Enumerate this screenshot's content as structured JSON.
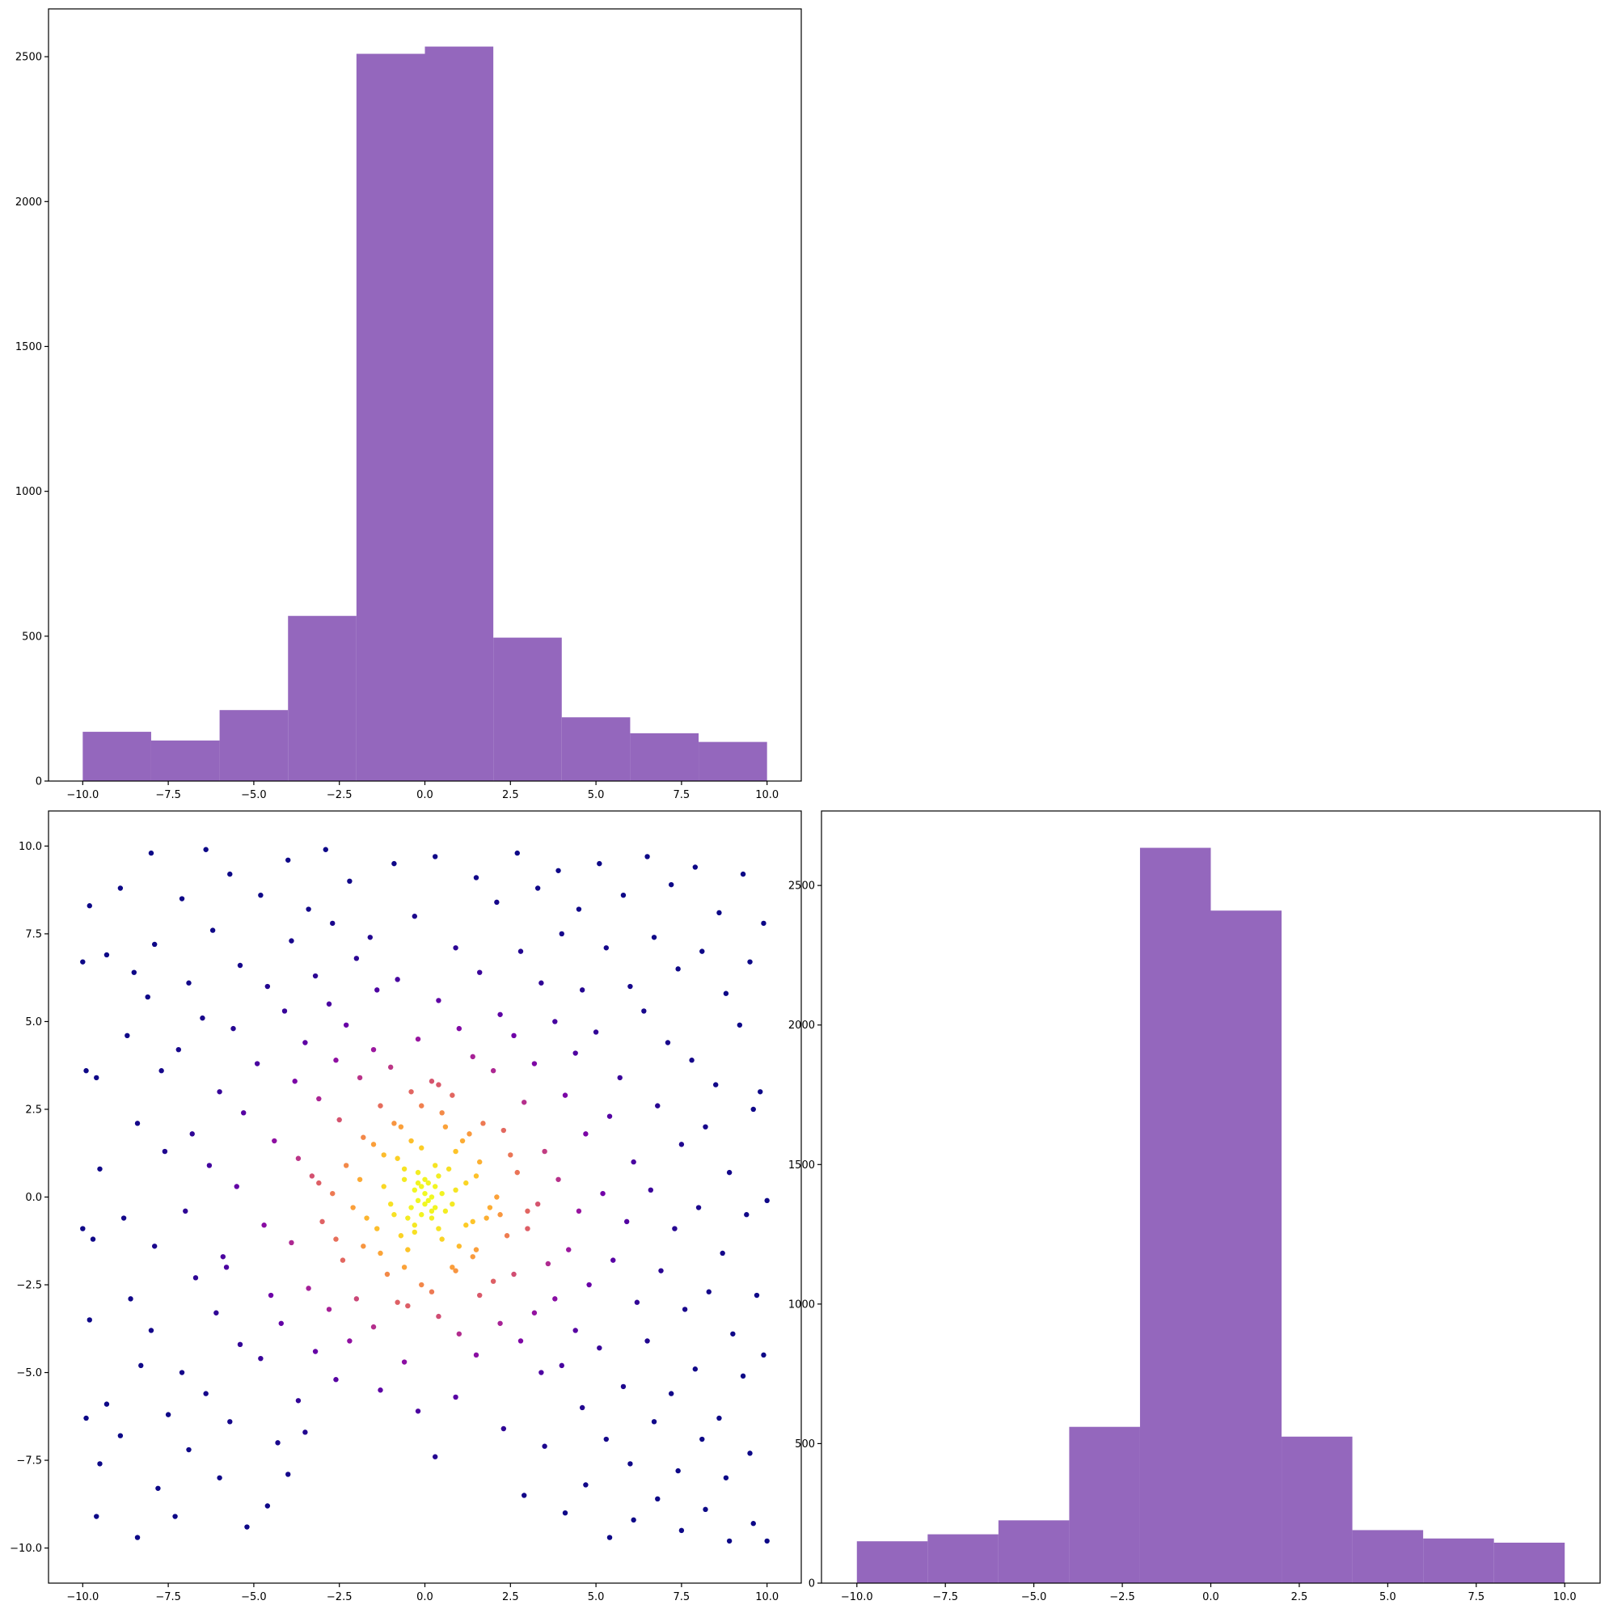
{
  "chart_data": [
    {
      "type": "bar",
      "panel": "top-left",
      "title": "",
      "xlabel": "",
      "ylabel": "",
      "bin_edges": [
        -10,
        -8,
        -6,
        -4,
        -2,
        0,
        2,
        4,
        6,
        8,
        10
      ],
      "values": [
        170,
        140,
        245,
        570,
        2510,
        2535,
        495,
        220,
        165,
        135
      ],
      "xlim": [
        -11,
        11
      ],
      "ylim": [
        0,
        2665
      ],
      "xticks": [
        -10,
        -7.5,
        -5,
        -2.5,
        0,
        2.5,
        5,
        7.5,
        10
      ],
      "xtick_labels": [
        "−10.0",
        "−7.5",
        "−5.0",
        "−2.5",
        "0.0",
        "2.5",
        "5.0",
        "7.5",
        "10.0"
      ],
      "yticks": [
        0,
        500,
        1000,
        1500,
        2000,
        2500
      ],
      "ytick_labels": [
        "0",
        "500",
        "1000",
        "1500",
        "2000",
        "2500"
      ],
      "color": "#9467bd",
      "grid": false
    },
    {
      "type": "scatter",
      "panel": "bottom-left",
      "title": "",
      "xlabel": "",
      "ylabel": "",
      "xlim": [
        -11,
        11
      ],
      "ylim": [
        -11,
        11
      ],
      "xticks": [
        -10,
        -7.5,
        -5,
        -2.5,
        0,
        2.5,
        5,
        7.5,
        10
      ],
      "xtick_labels": [
        "−10.0",
        "−7.5",
        "−5.0",
        "−2.5",
        "0.0",
        "2.5",
        "5.0",
        "7.5",
        "10.0"
      ],
      "yticks": [
        -10,
        -7.5,
        -5,
        -2.5,
        0,
        2.5,
        5,
        7.5,
        10
      ],
      "ytick_labels": [
        "−10.0",
        "−7.5",
        "−5.0",
        "−2.5",
        "0.0",
        "2.5",
        "5.0",
        "7.5",
        "10.0"
      ],
      "colormap": "plasma",
      "color_encoding": "point density",
      "grid": false,
      "points": [
        [
          -9.8,
          8.3
        ],
        [
          -9.3,
          6.9
        ],
        [
          -9.6,
          3.4
        ],
        [
          -9.5,
          0.8
        ],
        [
          -9.7,
          -1.2
        ],
        [
          -9.8,
          -3.5
        ],
        [
          -9.3,
          -5.9
        ],
        [
          -9.5,
          -7.6
        ],
        [
          -9.6,
          -9.1
        ],
        [
          -8.9,
          8.8
        ],
        [
          -8.5,
          6.4
        ],
        [
          -8.7,
          4.6
        ],
        [
          -8.4,
          2.1
        ],
        [
          -8.8,
          -0.6
        ],
        [
          -8.6,
          -2.9
        ],
        [
          -8.3,
          -4.8
        ],
        [
          -8.9,
          -6.8
        ],
        [
          -8.4,
          -9.7
        ],
        [
          -8.0,
          9.8
        ],
        [
          -7.9,
          7.2
        ],
        [
          -8.1,
          5.7
        ],
        [
          -7.7,
          3.6
        ],
        [
          -7.6,
          1.3
        ],
        [
          -7.9,
          -1.4
        ],
        [
          -8.0,
          -3.8
        ],
        [
          -7.5,
          -6.2
        ],
        [
          -7.8,
          -8.3
        ],
        [
          -7.1,
          8.5
        ],
        [
          -6.9,
          6.1
        ],
        [
          -7.2,
          4.2
        ],
        [
          -6.8,
          1.8
        ],
        [
          -7.0,
          -0.4
        ],
        [
          -6.7,
          -2.3
        ],
        [
          -7.1,
          -5.0
        ],
        [
          -6.9,
          -7.2
        ],
        [
          -7.3,
          -9.1
        ],
        [
          -6.4,
          9.9
        ],
        [
          -6.2,
          7.6
        ],
        [
          -6.5,
          5.1
        ],
        [
          -6.0,
          3.0
        ],
        [
          -6.3,
          0.9
        ],
        [
          -5.9,
          -1.7
        ],
        [
          -6.1,
          -3.3
        ],
        [
          -6.4,
          -5.6
        ],
        [
          -6.0,
          -8.0
        ],
        [
          -5.7,
          9.2
        ],
        [
          -5.4,
          6.6
        ],
        [
          -5.6,
          4.8
        ],
        [
          -5.3,
          2.4
        ],
        [
          -5.5,
          0.3
        ],
        [
          -5.8,
          -2.0
        ],
        [
          -5.4,
          -4.2
        ],
        [
          -5.7,
          -6.4
        ],
        [
          -5.2,
          -9.4
        ],
        [
          -4.8,
          8.6
        ],
        [
          -4.6,
          6.0
        ],
        [
          -4.9,
          3.8
        ],
        [
          -4.4,
          1.6
        ],
        [
          -4.7,
          -0.8
        ],
        [
          -4.5,
          -2.8
        ],
        [
          -4.8,
          -4.6
        ],
        [
          -4.3,
          -7.0
        ],
        [
          -4.6,
          -8.8
        ],
        [
          -4.0,
          9.6
        ],
        [
          -3.9,
          7.3
        ],
        [
          -4.1,
          5.3
        ],
        [
          -3.8,
          3.3
        ],
        [
          -3.7,
          1.1
        ],
        [
          -3.9,
          -1.3
        ],
        [
          -4.2,
          -3.6
        ],
        [
          -3.7,
          -5.8
        ],
        [
          -4.0,
          -7.9
        ],
        [
          -3.4,
          8.2
        ],
        [
          -3.2,
          6.3
        ],
        [
          -3.5,
          4.4
        ],
        [
          -3.1,
          2.8
        ],
        [
          -3.3,
          0.6
        ],
        [
          -3.0,
          -0.7
        ],
        [
          -3.4,
          -2.6
        ],
        [
          -3.2,
          -4.4
        ],
        [
          -3.5,
          -6.7
        ],
        [
          -2.9,
          9.9
        ],
        [
          -2.7,
          7.8
        ],
        [
          -2.8,
          5.5
        ],
        [
          -2.6,
          3.9
        ],
        [
          -2.5,
          2.2
        ],
        [
          -2.7,
          0.1
        ],
        [
          -2.4,
          -1.8
        ],
        [
          -2.8,
          -3.2
        ],
        [
          -2.6,
          -5.2
        ],
        [
          -2.2,
          9.0
        ],
        [
          -2.0,
          6.8
        ],
        [
          -2.3,
          4.9
        ],
        [
          -1.9,
          3.4
        ],
        [
          -1.8,
          1.7
        ],
        [
          -2.1,
          -0.3
        ],
        [
          -1.8,
          -1.4
        ],
        [
          -2.0,
          -2.9
        ],
        [
          -2.2,
          -4.1
        ],
        [
          -1.6,
          7.4
        ],
        [
          -1.4,
          5.9
        ],
        [
          -1.5,
          4.2
        ],
        [
          -1.3,
          2.6
        ],
        [
          -1.2,
          1.2
        ],
        [
          -1.4,
          -0.9
        ],
        [
          -1.1,
          -2.2
        ],
        [
          -1.5,
          -3.7
        ],
        [
          -1.3,
          -5.5
        ],
        [
          -0.9,
          9.5
        ],
        [
          -0.8,
          6.2
        ],
        [
          -1.0,
          3.7
        ],
        [
          -0.7,
          2.0
        ],
        [
          -0.6,
          0.8
        ],
        [
          -0.9,
          -0.5
        ],
        [
          -0.5,
          -1.5
        ],
        [
          -0.8,
          -3.0
        ],
        [
          -0.6,
          -4.7
        ],
        [
          -0.3,
          8.0
        ],
        [
          -0.2,
          4.5
        ],
        [
          -0.4,
          3.0
        ],
        [
          -0.1,
          1.4
        ],
        [
          -0.2,
          0.4
        ],
        [
          0.0,
          -0.2
        ],
        [
          -0.3,
          -1.0
        ],
        [
          -0.1,
          -2.5
        ],
        [
          -0.2,
          -6.1
        ],
        [
          0.3,
          9.7
        ],
        [
          0.4,
          5.6
        ],
        [
          0.2,
          3.3
        ],
        [
          0.5,
          2.4
        ],
        [
          0.3,
          0.9
        ],
        [
          0.2,
          -0.4
        ],
        [
          0.5,
          -1.2
        ],
        [
          0.4,
          -3.4
        ],
        [
          0.3,
          -7.4
        ],
        [
          0.9,
          7.1
        ],
        [
          1.0,
          4.8
        ],
        [
          0.8,
          2.9
        ],
        [
          1.1,
          1.6
        ],
        [
          0.9,
          0.2
        ],
        [
          1.2,
          -0.8
        ],
        [
          0.8,
          -2.0
        ],
        [
          1.0,
          -3.9
        ],
        [
          0.9,
          -5.7
        ],
        [
          1.5,
          9.1
        ],
        [
          1.6,
          6.4
        ],
        [
          1.4,
          4.0
        ],
        [
          1.7,
          2.1
        ],
        [
          1.5,
          0.6
        ],
        [
          1.8,
          -0.6
        ],
        [
          1.4,
          -1.7
        ],
        [
          1.6,
          -2.8
        ],
        [
          1.5,
          -4.5
        ],
        [
          2.1,
          8.4
        ],
        [
          2.2,
          5.2
        ],
        [
          2.0,
          3.6
        ],
        [
          2.3,
          1.9
        ],
        [
          2.1,
          0.0
        ],
        [
          2.4,
          -1.1
        ],
        [
          2.0,
          -2.4
        ],
        [
          2.2,
          -3.6
        ],
        [
          2.3,
          -6.6
        ],
        [
          2.7,
          9.8
        ],
        [
          2.8,
          7.0
        ],
        [
          2.6,
          4.6
        ],
        [
          2.9,
          2.7
        ],
        [
          2.7,
          0.7
        ],
        [
          3.0,
          -0.9
        ],
        [
          2.6,
          -2.2
        ],
        [
          2.8,
          -4.1
        ],
        [
          2.9,
          -8.5
        ],
        [
          3.3,
          8.8
        ],
        [
          3.4,
          6.1
        ],
        [
          3.2,
          3.8
        ],
        [
          3.5,
          1.3
        ],
        [
          3.3,
          -0.2
        ],
        [
          3.6,
          -1.9
        ],
        [
          3.2,
          -3.3
        ],
        [
          3.4,
          -5.0
        ],
        [
          3.5,
          -7.1
        ],
        [
          3.9,
          9.3
        ],
        [
          4.0,
          7.5
        ],
        [
          3.8,
          5.0
        ],
        [
          4.1,
          2.9
        ],
        [
          3.9,
          0.5
        ],
        [
          4.2,
          -1.5
        ],
        [
          3.8,
          -2.9
        ],
        [
          4.0,
          -4.8
        ],
        [
          4.1,
          -9.0
        ],
        [
          4.5,
          8.2
        ],
        [
          4.6,
          5.9
        ],
        [
          4.4,
          4.1
        ],
        [
          4.7,
          1.8
        ],
        [
          4.5,
          -0.4
        ],
        [
          4.8,
          -2.5
        ],
        [
          4.4,
          -3.8
        ],
        [
          4.6,
          -6.0
        ],
        [
          4.7,
          -8.2
        ],
        [
          5.1,
          9.5
        ],
        [
          5.3,
          7.1
        ],
        [
          5.0,
          4.7
        ],
        [
          5.4,
          2.3
        ],
        [
          5.2,
          0.1
        ],
        [
          5.5,
          -1.8
        ],
        [
          5.1,
          -4.3
        ],
        [
          5.3,
          -6.9
        ],
        [
          5.4,
          -9.7
        ],
        [
          5.8,
          8.6
        ],
        [
          6.0,
          6.0
        ],
        [
          5.7,
          3.4
        ],
        [
          6.1,
          1.0
        ],
        [
          5.9,
          -0.7
        ],
        [
          6.2,
          -3.0
        ],
        [
          5.8,
          -5.4
        ],
        [
          6.0,
          -7.6
        ],
        [
          6.1,
          -9.2
        ],
        [
          6.5,
          9.7
        ],
        [
          6.7,
          7.4
        ],
        [
          6.4,
          5.3
        ],
        [
          6.8,
          2.6
        ],
        [
          6.6,
          0.2
        ],
        [
          6.9,
          -2.1
        ],
        [
          6.5,
          -4.1
        ],
        [
          6.7,
          -6.4
        ],
        [
          6.8,
          -8.6
        ],
        [
          7.2,
          8.9
        ],
        [
          7.4,
          6.5
        ],
        [
          7.1,
          4.4
        ],
        [
          7.5,
          1.5
        ],
        [
          7.3,
          -0.9
        ],
        [
          7.6,
          -3.2
        ],
        [
          7.2,
          -5.6
        ],
        [
          7.4,
          -7.8
        ],
        [
          7.5,
          -9.5
        ],
        [
          7.9,
          9.4
        ],
        [
          8.1,
          7.0
        ],
        [
          7.8,
          3.9
        ],
        [
          8.2,
          2.0
        ],
        [
          8.0,
          -0.3
        ],
        [
          8.3,
          -2.7
        ],
        [
          7.9,
          -4.9
        ],
        [
          8.1,
          -6.9
        ],
        [
          8.2,
          -8.9
        ],
        [
          8.6,
          8.1
        ],
        [
          8.8,
          5.8
        ],
        [
          8.5,
          3.2
        ],
        [
          8.9,
          0.7
        ],
        [
          8.7,
          -1.6
        ],
        [
          9.0,
          -3.9
        ],
        [
          8.6,
          -6.3
        ],
        [
          8.8,
          -8.0
        ],
        [
          8.9,
          -9.8
        ],
        [
          9.3,
          9.2
        ],
        [
          9.5,
          6.7
        ],
        [
          9.2,
          4.9
        ],
        [
          9.6,
          2.5
        ],
        [
          9.4,
          -0.5
        ],
        [
          9.7,
          -2.8
        ],
        [
          9.3,
          -5.1
        ],
        [
          9.5,
          -7.3
        ],
        [
          9.6,
          -9.3
        ],
        [
          9.9,
          7.8
        ],
        [
          9.8,
          3.0
        ],
        [
          10.0,
          -0.1
        ],
        [
          9.9,
          -4.5
        ],
        [
          10.0,
          -9.8
        ],
        [
          -10.0,
          -0.9
        ],
        [
          -9.9,
          -6.3
        ],
        [
          -10.0,
          6.7
        ],
        [
          -9.9,
          3.6
        ],
        [
          -1.9,
          0.5
        ],
        [
          -1.7,
          -0.6
        ],
        [
          -1.2,
          0.3
        ],
        [
          -1.0,
          -0.2
        ],
        [
          -0.8,
          1.1
        ],
        [
          -0.7,
          -1.1
        ],
        [
          -0.6,
          0.5
        ],
        [
          -0.5,
          -0.6
        ],
        [
          -0.4,
          1.6
        ],
        [
          -0.4,
          -0.3
        ],
        [
          -0.3,
          0.2
        ],
        [
          -0.3,
          -0.8
        ],
        [
          -0.2,
          0.7
        ],
        [
          -0.2,
          -0.1
        ],
        [
          -0.1,
          0.3
        ],
        [
          -0.1,
          -0.5
        ],
        [
          0.0,
          0.1
        ],
        [
          0.0,
          0.5
        ],
        [
          0.1,
          -0.1
        ],
        [
          0.1,
          0.4
        ],
        [
          0.2,
          0.0
        ],
        [
          0.2,
          -0.6
        ],
        [
          0.3,
          0.3
        ],
        [
          0.3,
          -0.3
        ],
        [
          0.4,
          0.6
        ],
        [
          0.4,
          -0.9
        ],
        [
          0.5,
          0.1
        ],
        [
          0.6,
          -0.4
        ],
        [
          0.7,
          0.8
        ],
        [
          0.8,
          -0.2
        ],
        [
          0.9,
          1.3
        ],
        [
          1.0,
          -1.4
        ],
        [
          1.2,
          0.4
        ],
        [
          1.4,
          -0.7
        ],
        [
          1.6,
          1.0
        ],
        [
          1.9,
          -0.3
        ],
        [
          -1.5,
          1.5
        ],
        [
          -1.3,
          -1.6
        ],
        [
          -0.9,
          2.1
        ],
        [
          -0.6,
          -2.0
        ],
        [
          0.6,
          2.0
        ],
        [
          0.9,
          -2.1
        ],
        [
          1.3,
          1.8
        ],
        [
          1.5,
          -1.5
        ],
        [
          -2.3,
          0.9
        ],
        [
          2.2,
          -0.5
        ],
        [
          -2.6,
          -1.2
        ],
        [
          2.5,
          1.2
        ],
        [
          -0.1,
          2.6
        ],
        [
          0.2,
          -2.7
        ],
        [
          -3.1,
          0.4
        ],
        [
          3.0,
          -0.4
        ],
        [
          0.4,
          3.2
        ],
        [
          -0.5,
          -3.1
        ]
      ]
    },
    {
      "type": "bar",
      "panel": "bottom-right",
      "title": "",
      "xlabel": "",
      "ylabel": "",
      "bin_edges": [
        -10,
        -8,
        -6,
        -4,
        -2,
        0,
        2,
        4,
        6,
        8,
        10
      ],
      "values": [
        150,
        175,
        225,
        560,
        2635,
        2410,
        525,
        190,
        160,
        145
      ],
      "xlim": [
        -11,
        11
      ],
      "ylim": [
        0,
        2767
      ],
      "xticks": [
        -10,
        -7.5,
        -5,
        -2.5,
        0,
        2.5,
        5,
        7.5,
        10
      ],
      "xtick_labels": [
        "−10.0",
        "−7.5",
        "−5.0",
        "−2.5",
        "0.0",
        "2.5",
        "5.0",
        "7.5",
        "10.0"
      ],
      "yticks": [
        0,
        500,
        1000,
        1500,
        2000,
        2500
      ],
      "ytick_labels": [
        "0",
        "500",
        "1000",
        "1500",
        "2000",
        "2500"
      ],
      "color": "#9467bd",
      "grid": false
    }
  ]
}
